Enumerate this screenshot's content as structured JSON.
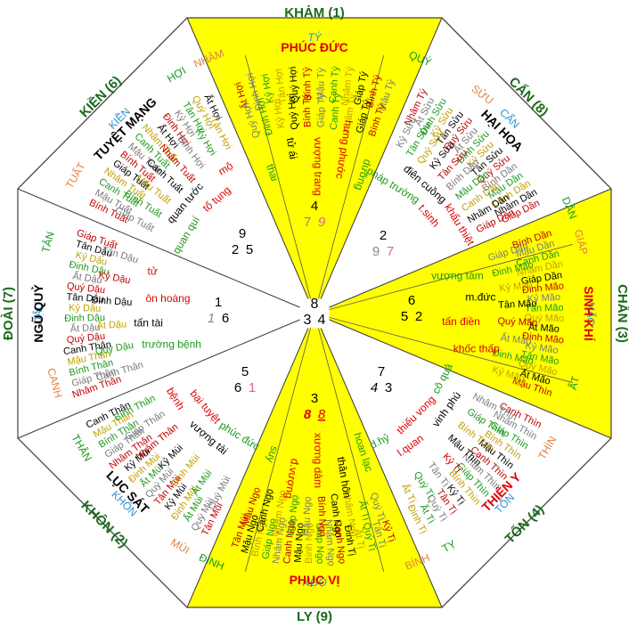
{
  "directions": {
    "n": "KHẢM (1)",
    "s": "LY (9)",
    "e": "CHẤN (3)",
    "w": "ĐOÀI (7)",
    "ne": "CẤN (8)",
    "nw": "KIỀN (6)",
    "se": "TỐN (4)",
    "sw": "KHÔN (2)"
  },
  "branches": {
    "nham": "NHÂM",
    "ty_n": "TÝ",
    "quy": "QUÝ",
    "suu": "SỬU",
    "can": "CẤN",
    "dan": "DẦN",
    "giap": "GIÁP",
    "mao": "MÃO",
    "at": "ẤT",
    "thin": "THÌN",
    "ton": "TỐN",
    "ty_se": "TỴ",
    "binh": "BÍNH",
    "ngo": "NGỌ",
    "dinh": "ĐINH",
    "mui": "MÙI",
    "khon": "KHÔN",
    "than": "THÂN",
    "canh": "CANH",
    "dau": "DẬU",
    "tan": "TÂN",
    "tuat": "TUẤT",
    "kien": "KIỀN",
    "hoi": "HỢI"
  },
  "stars": {
    "n": "PHÚC ĐỨC",
    "ne": "HẠI HỌA",
    "e": "SINH KHÍ",
    "se": "THIÊN Y",
    "s": "PHỤC VỊ",
    "sw": "LỤC SÁT",
    "w": "NGŨ QUỶ",
    "nw": "TUYỆT MẠNG"
  },
  "palaces": {
    "n": [
      "thai",
      "tử ái",
      "vượng trang",
      "hưng phước",
      "dưỡng"
    ],
    "ne": [
      "pháp trường",
      "điên cuồng",
      "t.sinh",
      "khẩu thiệt"
    ],
    "e": [
      "vượng tàm",
      "m.đức",
      "tấn điền",
      "khốc thấp"
    ],
    "se": [
      "cô quả",
      "vinh phú",
      "thiếu vong",
      "l.quan",
      "d.hỷ"
    ],
    "s": [
      "hoan lạc",
      "thân hôn",
      "xương dâm",
      "đ.vượng",
      "suy"
    ],
    "sw": [
      "phúc đức",
      "vượng tài",
      "bại tuyệt",
      "bệnh"
    ],
    "w": [
      "trường bệnh",
      "tấn tài",
      "ôn hoàng",
      "tử"
    ],
    "nw": [
      "quan quí",
      "quan tước",
      "tố tụng",
      "mộ"
    ]
  },
  "chart": {
    "center": {
      "a": "8",
      "b": "3",
      "c": "4"
    },
    "n": {
      "a": "4",
      "b": "7",
      "c": "9"
    },
    "ne": {
      "a": "2",
      "b": "9",
      "c": "7"
    },
    "e": {
      "a": "6",
      "b": "5",
      "c": "2"
    },
    "se": {
      "a": "7",
      "b": "4",
      "c": "3"
    },
    "s": {
      "a": "3",
      "b": "8",
      "c": "8"
    },
    "sw": {
      "a": "5",
      "b": "6",
      "c": "1"
    },
    "w": {
      "a": "1",
      "b": "1",
      "c": "6"
    },
    "nw": {
      "a": "9",
      "b": "2",
      "c": "5"
    }
  },
  "rings": {
    "n": [
      [
        "Ất Hợi",
        "Đinh Hợi",
        "Kỷ Hợi",
        "Tân Hợi",
        "Quý Hợi",
        "Bính Tý",
        "Mậu Tý",
        "Canh Tý",
        "Nhâm Tý",
        "Giáp Tý",
        "Bính Tý",
        "Mậu Tý"
      ],
      [
        "Quý Hợi",
        "Đinh Hợi",
        "Kỷ Hợi",
        "Quý Hợi",
        "Bính Tý",
        "Giáp Tý",
        "Canh Tý",
        "Nhâm Tý",
        "Giáp Tý",
        "Bính Tý"
      ]
    ],
    "ne": [
      [
        "Nhâm Tý",
        "Ất Sửu",
        "Đinh Sửu",
        "Kỷ Sửu",
        "Tân Sửu",
        "Quý Sửu",
        "Ất Sửu",
        "Đinh Sửu",
        "Kỷ Sửu",
        "Tân Sửu",
        "Quý Sửu",
        "Bính Dần",
        "Mậu Dần",
        "Canh Dần",
        "Nhâm Dần",
        "Giáp Dần"
      ],
      [
        "Kỷ Sửu",
        "Tân Sửu",
        "Quý Sửu",
        "Kỷ Sửu",
        "Tân Sửu",
        "Bính Dần",
        "Mậu Dần",
        "Canh Dần",
        "Nhâm Dần",
        "Giáp Dần"
      ]
    ],
    "e": [
      [
        "Bính Dần",
        "Mậu Dần",
        "Canh Dần",
        "Nhâm Dần",
        "Giáp Dần",
        "Đinh Mão",
        "Kỷ Mão",
        "Tân Mão",
        "Quý Mão",
        "Ất Mão",
        "Đinh Mão",
        "Kỷ Mão",
        "Tân Mão",
        "Quý Mão",
        "Ất Mão",
        "Mậu Thìn"
      ],
      [
        "Giáp Dần",
        "Đinh Mão",
        "Kỷ Mão",
        "Tân Mão",
        "Quý Mão",
        "Ất Mão",
        "Đinh Mão",
        "Kỷ Mão"
      ]
    ],
    "se": [
      [
        "Canh Thìn",
        "Nhâm Thìn",
        "Giáp Thìn",
        "Bính Thìn",
        "Mậu Thìn",
        "Canh Thìn",
        "Nhâm Thìn",
        "Giáp Thìn",
        "Bính Thìn",
        "Kỷ Tị",
        "Tân Tị",
        "Quý Tị",
        "Ất Tị",
        "Đinh Tị"
      ],
      [
        "Nhâm Thìn",
        "Giáp Thìn",
        "Bính Thìn",
        "Mậu Thìn",
        "Kỷ Tị",
        "Tân Tị",
        "Quý Tị",
        "Ất Tị"
      ]
    ],
    "s": [
      [
        "Kỷ Tị",
        "Tân Tị",
        "Quý Tị",
        "Ất Tị",
        "Đinh Tị",
        "Canh Ngọ",
        "Nhâm Ngọ",
        "Giáp Ngọ",
        "Bính Ngọ",
        "Mậu Ngọ",
        "Canh Ngọ",
        "Nhâm Ngọ",
        "Giáp Ngọ",
        "Bính Ngọ",
        "Mậu Ngọ",
        "Tân Mùi"
      ],
      [
        "Quý Tị",
        "Ất Tị",
        "Nhâm Ngọ",
        "Canh Ngọ",
        "Bính Ngọ",
        "Mậu Ngọ",
        "Giáp Ngọ",
        "Nhâm Ngọ",
        "Canh Ngọ",
        "Mậu Ngọ"
      ]
    ],
    "sw": [
      [
        "Tân Mùi",
        "Quý Mùi",
        "Ất Mùi",
        "Đinh Mùi",
        "Kỷ Mùi",
        "Tân Mùi",
        "Quý Mùi",
        "Ất Mùi",
        "Đinh Mùi",
        "Kỷ Mùi",
        "Nhâm Thân",
        "Giáp Thân",
        "Bính Thân",
        "Mậu Thân",
        "Canh Thân"
      ],
      [
        "Quý Mùi",
        "Ất Mùi",
        "Đinh Mùi",
        "Kỷ Mùi",
        "Nhâm Thân",
        "Giáp Thân",
        "Bính Thân"
      ]
    ],
    "w": [
      [
        "Nhâm Thân",
        "Giáp Thân",
        "Bính Thân",
        "Mậu Thân",
        "Canh Thân",
        "Quý Dậu",
        "Ất Dậu",
        "Đinh Dậu",
        "Kỷ Dậu",
        "Tân Dậu",
        "Quý Dậu",
        "Ất Dậu",
        "Đinh Dậu",
        "Kỷ Dậu",
        "Tân Dậu",
        "Giáp Tuất"
      ],
      [
        "Canh Thân",
        "Quý Dậu",
        "Ất Dậu",
        "Đinh Dậu",
        "Kỷ Dậu",
        "Tân Dậu"
      ]
    ],
    "nw": [
      [
        "Bính Tuất",
        "Mậu Tuất",
        "Canh Tuất",
        "Nhâm Tuất",
        "Giáp Tuất",
        "Bính Tuất",
        "Mậu Tuất",
        "Canh Tuất",
        "Nhâm Tuất",
        "Ất Hợi",
        "Đinh Hợi",
        "Kỷ Hợi",
        "Tân Hợi",
        "Quý Hợi",
        "Ất Hợi"
      ],
      [
        "Giáp Tuất",
        "Bính Tuất",
        "Mậu Tuất",
        "Canh Tuất",
        "Nhâm Tuất",
        "Đinh Hợi",
        "Kỷ Hợi",
        "Tân Hợi"
      ]
    ]
  },
  "colors": {
    "yellow": "#ffff00",
    "green_dir": "#1a6a1a",
    "red": "#e00000",
    "orange": "#e08040",
    "teal": "#2b8fcf",
    "ring": [
      "#c00000",
      "#7a7a7a",
      "#1a9a1a",
      "#c0a000",
      "#000000"
    ]
  }
}
